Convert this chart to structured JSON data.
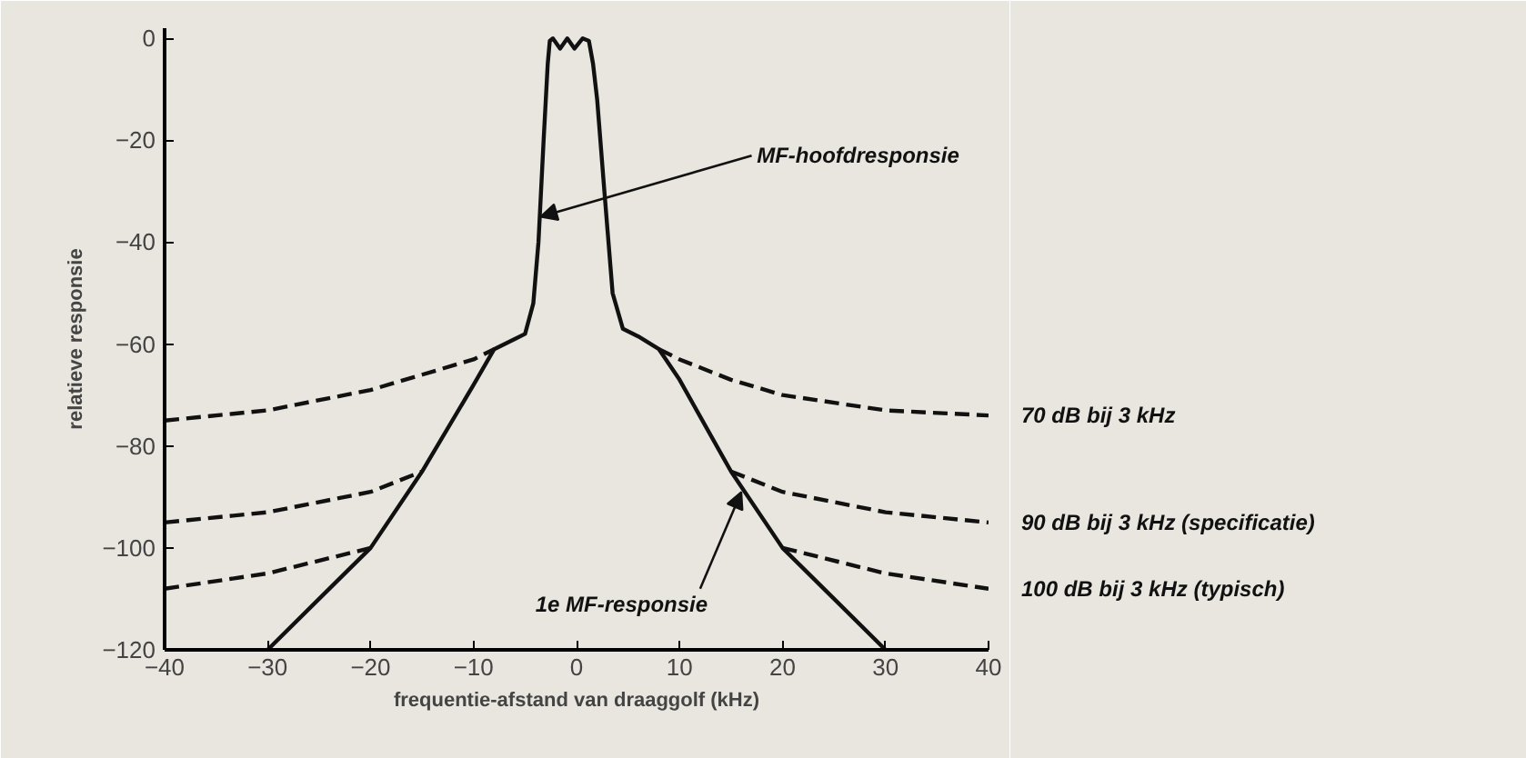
{
  "chart_data": {
    "type": "line",
    "xlabel": "frequentie-afstand van draaggolf (kHz)",
    "ylabel": "relatieve responsie",
    "xlim": [
      -40,
      40
    ],
    "ylim": [
      -120,
      2
    ],
    "xticks": [
      -40,
      -30,
      -20,
      -10,
      0,
      10,
      20,
      30,
      40
    ],
    "yticks": [
      0,
      -20,
      -40,
      -60,
      -80,
      -100,
      -120
    ],
    "grid": false,
    "marker": "none",
    "series": [
      {
        "color": "#111111",
        "line_style": "solid",
        "x": [
          -30,
          -25,
          -20,
          -15,
          -10,
          -8,
          -6,
          -5,
          -4.2,
          -3.7,
          -3.2,
          -2.8,
          -2.6,
          -2.3,
          -1.6,
          -0.9,
          -0.2,
          0.6,
          1.2,
          1.6,
          2.0,
          2.7,
          3.5,
          4.5,
          6,
          8,
          10,
          15,
          20,
          25,
          30
        ],
        "values": [
          -120,
          -110,
          -100,
          -85,
          -68,
          -61,
          -59,
          -58,
          -52,
          -40,
          -20,
          -5,
          -0.5,
          0,
          -2,
          0,
          -2,
          0,
          -0.5,
          -5,
          -12,
          -30,
          -50,
          -57,
          -58.5,
          -61,
          -67,
          -85,
          -100,
          -110,
          -120
        ]
      },
      {
        "name": "70 dB bij 3 kHz",
        "color": "#111111",
        "line_style": "dashed",
        "x": [
          -40,
          -30,
          -20,
          -15,
          -10,
          -8,
          0,
          8,
          10,
          15,
          20,
          30,
          40
        ],
        "values": [
          -75,
          -73,
          -69,
          -66,
          -63,
          -61,
          null,
          -61,
          -63,
          -67,
          -70,
          -73,
          -74
        ]
      },
      {
        "name": "90 dB bij 3 kHz (specificatie)",
        "color": "#111111",
        "line_style": "dashed",
        "x": [
          -40,
          -30,
          -20,
          -15,
          0,
          15,
          20,
          30,
          40
        ],
        "values": [
          -95,
          -93,
          -89,
          -85,
          null,
          -85,
          -89,
          -93,
          -95
        ]
      },
      {
        "name": "100 dB bij 3 kHz (typisch)",
        "color": "#111111",
        "line_style": "dashed",
        "x": [
          -40,
          -30,
          -20,
          0,
          20,
          30,
          40
        ],
        "values": [
          -108,
          -105,
          -100,
          null,
          -100,
          -105,
          -108
        ]
      }
    ],
    "annotations": [
      {
        "text": "MF-hoofdresponsie",
        "x": -3.5,
        "y": -35
      },
      {
        "text": "1e MF-responsie",
        "x": 16,
        "y": -89
      }
    ]
  }
}
